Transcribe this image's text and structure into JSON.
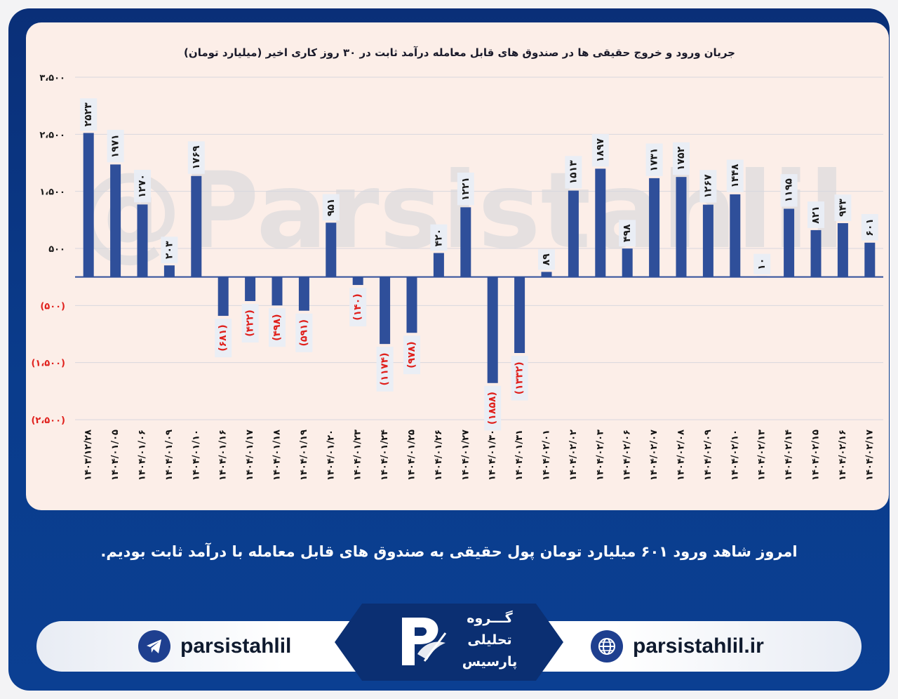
{
  "chart_data": {
    "type": "bar",
    "title": "جریان ورود و خروج حقیقی ها در صندوق های قابل معامله درآمد ثابت در ۳۰ روز کاری اخیر (میلیارد تومان)",
    "xlabel": "",
    "ylabel": "",
    "ylim": [
      -2500,
      3500
    ],
    "yticks": [
      3500,
      2500,
      1500,
      500,
      -500,
      -1500,
      -2500
    ],
    "ytick_labels": [
      "۳،۵۰۰",
      "۲،۵۰۰",
      "۱،۵۰۰",
      "۵۰۰",
      "(۵۰۰)",
      "(۱،۵۰۰)",
      "(۲،۵۰۰)"
    ],
    "grid": true,
    "categories": [
      "۱۴۰۳/۱۲/۲۸",
      "۱۴۰۴/۰۱/۰۵",
      "۱۴۰۴/۰۱/۰۶",
      "۱۴۰۴/۰۱/۰۹",
      "۱۴۰۴/۰۱/۱۰",
      "۱۴۰۴/۰۱/۱۶",
      "۱۴۰۴/۰۱/۱۷",
      "۱۴۰۴/۰۱/۱۸",
      "۱۴۰۴/۰۱/۱۹",
      "۱۴۰۴/۰۱/۲۰",
      "۱۴۰۴/۰۱/۲۳",
      "۱۴۰۴/۰۱/۲۴",
      "۱۴۰۴/۰۱/۲۵",
      "۱۴۰۴/۰۱/۲۶",
      "۱۴۰۴/۰۱/۲۷",
      "۱۴۰۴/۰۱/۳۰",
      "۱۴۰۴/۰۱/۳۱",
      "۱۴۰۴/۰۲/۰۱",
      "۱۴۰۴/۰۲/۰۲",
      "۱۴۰۴/۰۲/۰۳",
      "۱۴۰۴/۰۲/۰۶",
      "۱۴۰۴/۰۲/۰۷",
      "۱۴۰۴/۰۲/۰۸",
      "۱۴۰۴/۰۲/۰۹",
      "۱۴۰۴/۰۲/۱۰",
      "۱۴۰۴/۰۲/۱۳",
      "۱۴۰۴/۰۲/۱۴",
      "۱۴۰۴/۰۲/۱۵",
      "۱۴۰۴/۰۲/۱۶",
      "۱۴۰۴/۰۲/۱۷"
    ],
    "values": [
      2523,
      1971,
      1270,
      203,
      1769,
      -681,
      -422,
      -498,
      -591,
      951,
      -140,
      -1174,
      -978,
      420,
      1221,
      -1858,
      -1332,
      89,
      1513,
      1897,
      498,
      1731,
      1752,
      1267,
      1448,
      10,
      1195,
      821,
      943,
      601
    ],
    "data_labels": [
      "۲۵۲۳",
      "۱۹۷۱",
      "۱۲۷۰",
      "۲۰۳",
      "۱۷۶۹",
      "(۶۸۱)",
      "(۴۲۲)",
      "(۴۹۸)",
      "(۵۹۱)",
      "۹۵۱",
      "(۱۴۰)",
      "(۱۱۷۴)",
      "(۹۷۸)",
      "۴۲۰",
      "۱۲۲۱",
      "(۱۸۵۸)",
      "(۱۳۳۲)",
      "۸۹",
      "۱۵۱۳",
      "۱۸۹۷",
      "۴۹۸",
      "۱۷۳۱",
      "۱۷۵۲",
      "۱۲۶۷",
      "۱۴۴۸",
      "۱۰",
      "۱۱۹۵",
      "۸۲۱",
      "۹۴۳",
      "۶۰۱"
    ],
    "colors": {
      "bar": "#2f4f9a",
      "negative_label": "#e0201c",
      "positive_label": "#1a1a1a",
      "grid": "#d7d7de"
    }
  },
  "watermark": "@Parsistahlil",
  "caption": "امروز شاهد ورود ۶۰۱ میلیارد تومان پول حقیقی به صندوق های قابل معامله با درآمد ثابت بودیم.",
  "footer": {
    "telegram_handle": "parsistahlil",
    "telegram_icon": "telegram-icon",
    "website": "parsistahlil.ir",
    "website_icon": "globe-icon",
    "logo_lines": [
      "گـــروه",
      "تحلیلی",
      "پارسیس"
    ]
  }
}
